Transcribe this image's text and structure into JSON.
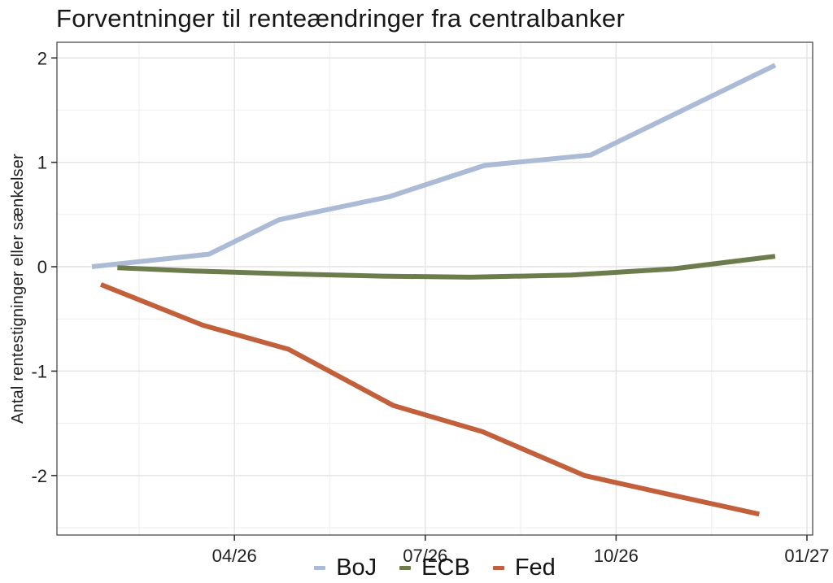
{
  "title": "Forventninger til renteændringer fra centralbanker",
  "chart_data": {
    "type": "line",
    "title": "Forventninger til renteændringer fra centralbanker",
    "xlabel": "",
    "ylabel": "Antal rentestigninger eller sænkelser",
    "x_encoding": "months since 2026-01-01 (tick labels are month/year dates)",
    "xlim": [
      0.21,
      12.09
    ],
    "ylim": [
      -2.57,
      2.15
    ],
    "grid": true,
    "legend_position": "bottom",
    "background_color": "#ffffff",
    "major_grid_color": "#e4e4e4",
    "minor_grid_color": "#f0f0f0",
    "border_color": "#4b4b4b",
    "tick_color": "#333333",
    "label_color": "#1f1f1f",
    "x_ticks": [
      {
        "value": 3,
        "label": "04/26"
      },
      {
        "value": 6,
        "label": "07/26"
      },
      {
        "value": 9,
        "label": "10/26"
      },
      {
        "value": 12,
        "label": "01/27"
      }
    ],
    "x_minor_gridlines": [
      1.5,
      4.5,
      7.5,
      10.5
    ],
    "y_ticks": [
      {
        "value": 2,
        "label": "2"
      },
      {
        "value": 1,
        "label": "1"
      },
      {
        "value": 0,
        "label": "0"
      },
      {
        "value": -1,
        "label": "-1"
      },
      {
        "value": -2,
        "label": "-2"
      }
    ],
    "y_minor_gridlines": [
      1.5,
      0.5,
      -0.5,
      -1.5,
      -2.5
    ],
    "series": [
      {
        "name": "BoJ",
        "color": "#abbad5",
        "points": [
          [
            0.76,
            0.0
          ],
          [
            2.6,
            0.12
          ],
          [
            3.7,
            0.45
          ],
          [
            5.43,
            0.67
          ],
          [
            6.93,
            0.97
          ],
          [
            8.6,
            1.07
          ],
          [
            11.5,
            1.93
          ]
        ]
      },
      {
        "name": "ECB",
        "color": "#6c7c4c",
        "points": [
          [
            1.16,
            -0.01
          ],
          [
            2.33,
            -0.04
          ],
          [
            3.93,
            -0.07
          ],
          [
            5.33,
            -0.09
          ],
          [
            6.7,
            -0.1
          ],
          [
            8.3,
            -0.08
          ],
          [
            9.9,
            -0.02
          ],
          [
            11.5,
            0.1
          ]
        ]
      },
      {
        "name": "Fed",
        "color": "#c2603c",
        "points": [
          [
            0.9,
            -0.17
          ],
          [
            2.5,
            -0.56
          ],
          [
            3.85,
            -0.79
          ],
          [
            5.5,
            -1.33
          ],
          [
            6.9,
            -1.58
          ],
          [
            8.5,
            -2.0
          ],
          [
            9.9,
            -2.19
          ],
          [
            11.25,
            -2.37
          ]
        ]
      }
    ]
  }
}
